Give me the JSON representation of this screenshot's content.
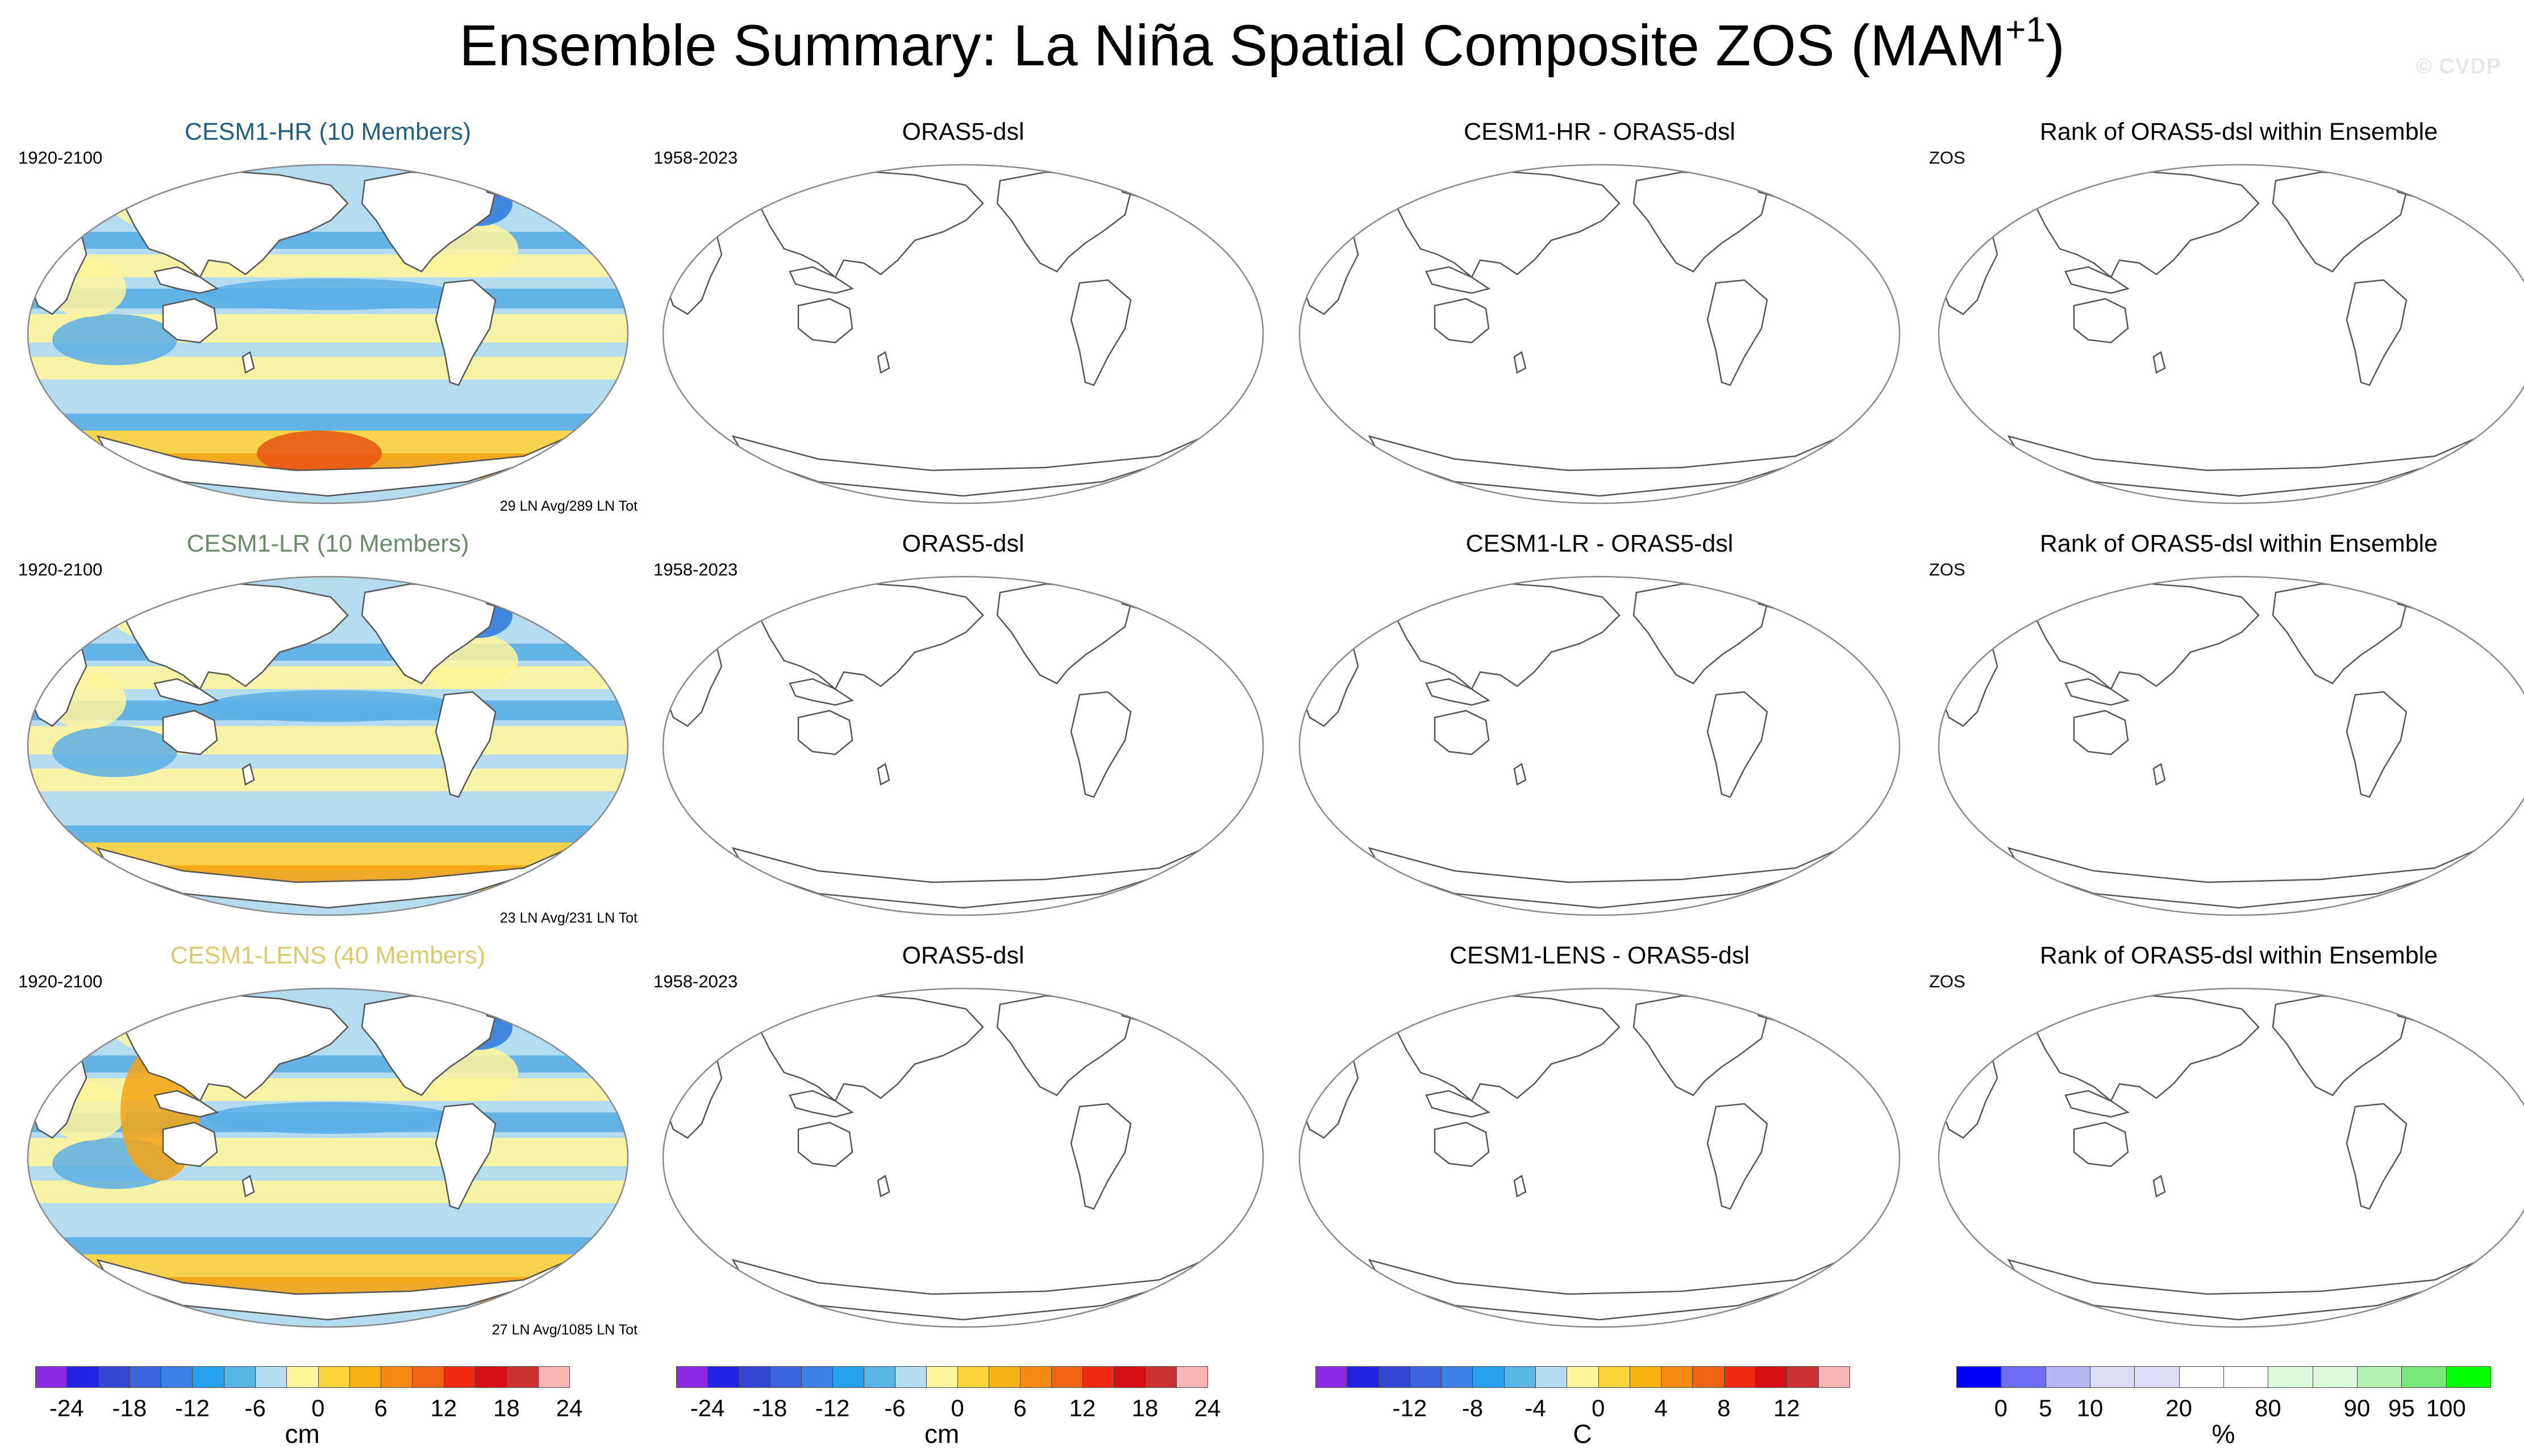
{
  "figure": {
    "title_main": "Ensemble Summary: La Niña Spatial Composite ZOS (MAM",
    "title_sup": "+1",
    "title_end": ")",
    "watermark": "© CVDP"
  },
  "rows": [
    {
      "model": {
        "title": "CESM1-HR (10 Members)",
        "title_color": "#1f5f86",
        "period": "1920-2100",
        "counts": "29 LN Avg/289 LN Tot"
      },
      "obs": {
        "title": "ORAS5-dsl",
        "period": "1958-2023"
      },
      "diff": {
        "title": "CESM1-HR - ORAS5-dsl"
      },
      "rank": {
        "title": "Rank of ORAS5-dsl within Ensemble",
        "label": "ZOS"
      }
    },
    {
      "model": {
        "title": "CESM1-LR (10 Members)",
        "title_color": "#6a8a6a",
        "period": "1920-2100",
        "counts": "23 LN Avg/231 LN Tot"
      },
      "obs": {
        "title": "ORAS5-dsl",
        "period": "1958-2023"
      },
      "diff": {
        "title": "CESM1-LR - ORAS5-dsl"
      },
      "rank": {
        "title": "Rank of ORAS5-dsl within Ensemble",
        "label": "ZOS"
      }
    },
    {
      "model": {
        "title": "CESM1-LENS (40 Members)",
        "title_color": "#d9c96a",
        "period": "1920-2100",
        "counts": "27 LN Avg/1085 LN Tot"
      },
      "obs": {
        "title": "ORAS5-dsl",
        "period": "1958-2023"
      },
      "diff": {
        "title": "CESM1-LENS - ORAS5-dsl"
      },
      "rank": {
        "title": "Rank of ORAS5-dsl within Ensemble",
        "label": "ZOS"
      }
    }
  ],
  "colors": {
    "ocean_neg_light": "#b4dcf0",
    "ocean_neg_mid": "#5aaee6",
    "ocean_neg_dark": "#2d78dc",
    "ocean_pos_light": "#fff59b",
    "ocean_pos_mid": "#fdd33c",
    "ocean_pos_dark": "#f5a314",
    "ocean_pos_max": "#e8520f",
    "land": "#ffffff",
    "coast": "#555555"
  },
  "colorbars": [
    {
      "unit": "cm",
      "colors": [
        "#8a2be2",
        "#2323e6",
        "#3246d2",
        "#3c64dc",
        "#3c82e6",
        "#28a0f0",
        "#5ab4e6",
        "#b4dcf0",
        "#fff59b",
        "#fdd33c",
        "#f5b414",
        "#f58c0f",
        "#f06414",
        "#f02814",
        "#d70f14",
        "#c83232",
        "#fab4b4"
      ],
      "ticks": [
        "-24",
        "-18",
        "-12",
        "-6",
        "0",
        "6",
        "12",
        "18",
        "24"
      ],
      "tick_slots": [
        1,
        3,
        5,
        7,
        9,
        11,
        13,
        15,
        17
      ]
    },
    {
      "unit": "cm",
      "colors": [
        "#8a2be2",
        "#2323e6",
        "#3246d2",
        "#3c64dc",
        "#3c82e6",
        "#28a0f0",
        "#5ab4e6",
        "#b4dcf0",
        "#fff59b",
        "#fdd33c",
        "#f5b414",
        "#f58c0f",
        "#f06414",
        "#f02814",
        "#d70f14",
        "#c83232",
        "#fab4b4"
      ],
      "ticks": [
        "-24",
        "-18",
        "-12",
        "-6",
        "0",
        "6",
        "12",
        "18",
        "24"
      ],
      "tick_slots": [
        1,
        3,
        5,
        7,
        9,
        11,
        13,
        15,
        17
      ]
    },
    {
      "unit": "C",
      "colors": [
        "#8a2be2",
        "#2323e6",
        "#3246d2",
        "#3c64dc",
        "#3c82e6",
        "#28a0f0",
        "#5ab4e6",
        "#b4dcf0",
        "#fff59b",
        "#fdd33c",
        "#f5b414",
        "#f58c0f",
        "#f06414",
        "#f02814",
        "#d70f14",
        "#c83232",
        "#fab4b4"
      ],
      "ticks": [
        "-12",
        "-8",
        "-4",
        "0",
        "4",
        "8",
        "12"
      ],
      "tick_slots": [
        3,
        5,
        7,
        9,
        11,
        13,
        15
      ]
    },
    {
      "unit": "%",
      "colors": [
        "#0000ff",
        "#6e6ef5",
        "#b4b4f0",
        "#dcdcf8",
        "#dcdcf8",
        "#ffffff",
        "#ffffff",
        "#dcfadc",
        "#dcfadc",
        "#b4f0b4",
        "#78e678",
        "#00ff00"
      ],
      "ticks": [
        "0",
        "5",
        "10",
        "20",
        "80",
        "90",
        "95",
        "100"
      ],
      "tick_slots": [
        1,
        2,
        3,
        5,
        7,
        9,
        10,
        11
      ]
    }
  ]
}
